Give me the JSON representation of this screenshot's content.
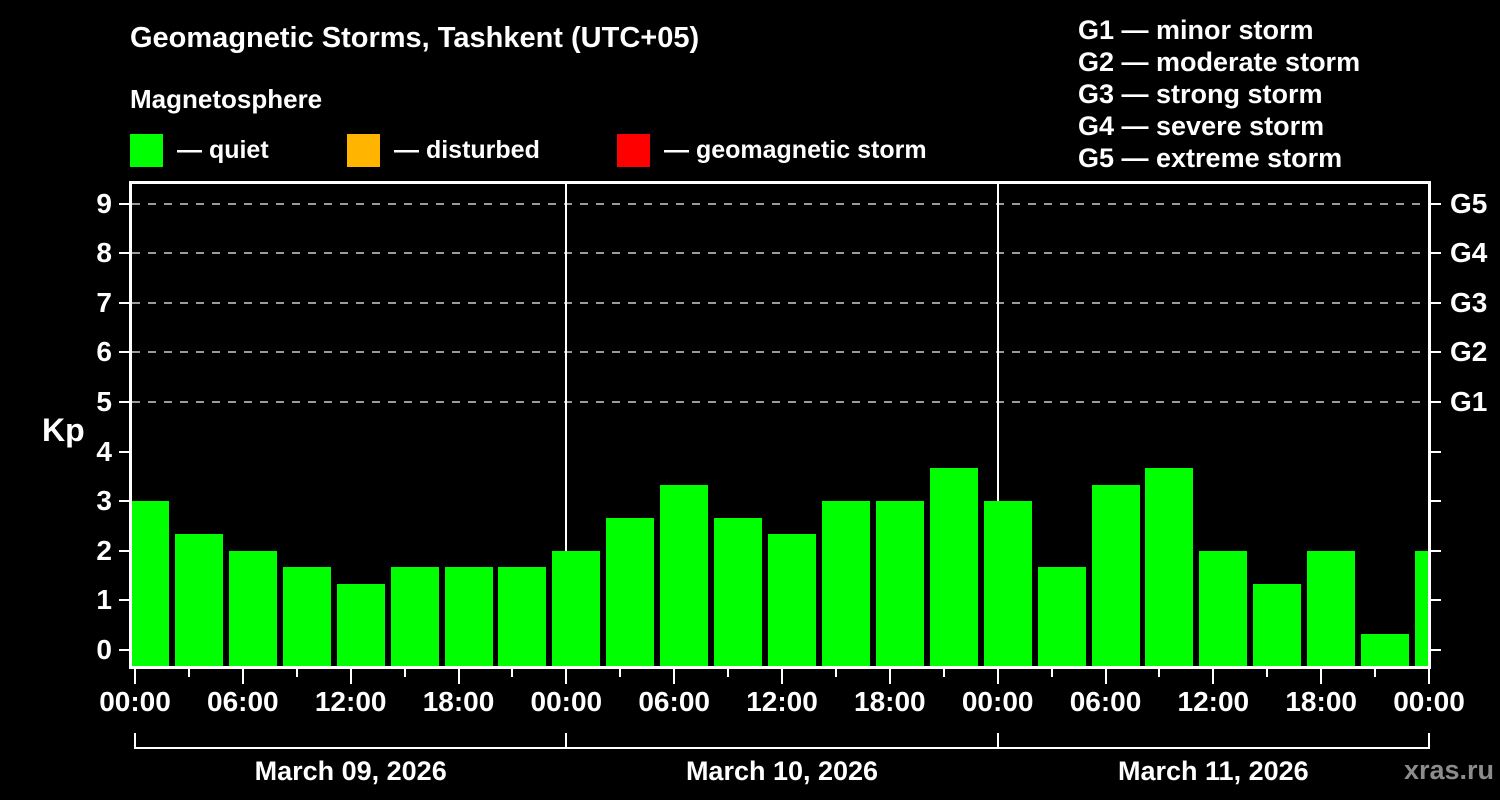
{
  "title": "Geomagnetic Storms, Tashkent (UTC+05)",
  "subtitle": "Magnetosphere",
  "legend": [
    {
      "label": "— quiet",
      "color": "#00ff00"
    },
    {
      "label": "— disturbed",
      "color": "#ffb400"
    },
    {
      "label": "— geomagnetic storm",
      "color": "#ff0000"
    }
  ],
  "storm_scale_legend": [
    "G1 — minor storm",
    "G2 — moderate storm",
    "G3 — strong storm",
    "G4 — severe storm",
    "G5 — extreme storm"
  ],
  "watermark": "xras.ru",
  "colors": {
    "background": "#000000",
    "text": "#ffffff",
    "axis": "#ffffff",
    "gridline": "#9a9a9a",
    "bar_quiet": "#00ff00",
    "bar_disturbed": "#ffb400",
    "bar_storm": "#ff0000",
    "watermark": "#8c8c8c"
  },
  "chart_data": {
    "type": "bar",
    "title": "Geomagnetic Storms, Tashkent (UTC+05)",
    "ylabel": "Kp",
    "ylim": [
      0,
      9
    ],
    "yticks": [
      0,
      1,
      2,
      3,
      4,
      5,
      6,
      7,
      8,
      9
    ],
    "gridlines_kp": [
      5,
      6,
      7,
      8,
      9
    ],
    "grid_style": "dashed",
    "right_axis_labels": [
      {
        "label": "G1",
        "kp": 5
      },
      {
        "label": "G2",
        "kp": 6
      },
      {
        "label": "G3",
        "kp": 7
      },
      {
        "label": "G4",
        "kp": 8
      },
      {
        "label": "G5",
        "kp": 9
      }
    ],
    "interval_hours": 3,
    "x_tick_labels": [
      "00:00",
      "06:00",
      "12:00",
      "18:00",
      "00:00",
      "06:00",
      "12:00",
      "18:00",
      "00:00",
      "06:00",
      "12:00",
      "18:00",
      "00:00"
    ],
    "days": [
      {
        "date": "March 09, 2026",
        "values": [
          3.0,
          2.33,
          2.0,
          1.67,
          1.33,
          1.67,
          1.67,
          1.67
        ]
      },
      {
        "date": "March 10, 2026",
        "values": [
          2.0,
          2.67,
          3.33,
          2.67,
          2.33,
          3.0,
          3.0,
          3.67
        ]
      },
      {
        "date": "March 11, 2026",
        "values": [
          3.0,
          1.67,
          3.33,
          3.67,
          2.0,
          1.33,
          2.0,
          0.33
        ]
      }
    ],
    "trailing_value": 2.0,
    "bar_states": "all quiet (green)"
  }
}
